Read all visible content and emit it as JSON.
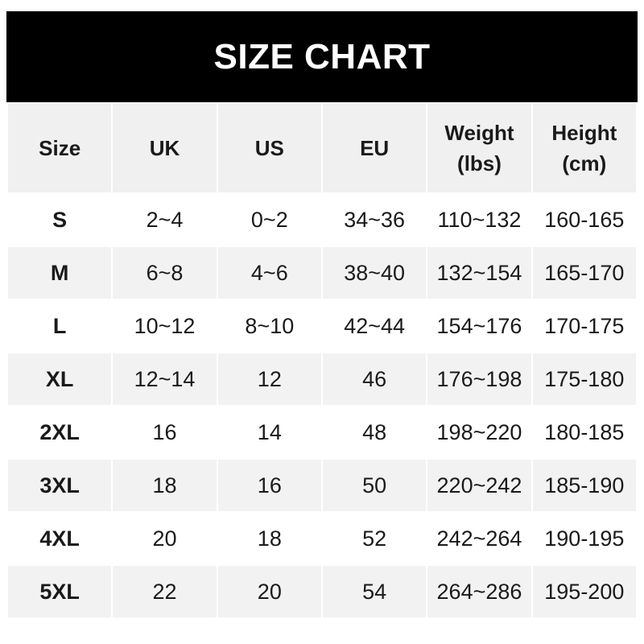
{
  "title": "SIZE CHART",
  "headers": [
    "Size",
    "UK",
    "US",
    "EU",
    "Weight\n(lbs)",
    "Height\n(cm)"
  ],
  "header_lines": [
    [
      "Size"
    ],
    [
      "UK"
    ],
    [
      "US"
    ],
    [
      "EU"
    ],
    [
      "Weight",
      "(lbs)"
    ],
    [
      "Height",
      "(cm)"
    ]
  ],
  "rows": [
    [
      "S",
      "2~4",
      "0~2",
      "34~36",
      "110~132",
      "160-165"
    ],
    [
      "M",
      "6~8",
      "4~6",
      "38~40",
      "132~154",
      "165-170"
    ],
    [
      "L",
      "10~12",
      "8~10",
      "42~44",
      "154~176",
      "170-175"
    ],
    [
      "XL",
      "12~14",
      "12",
      "46",
      "176~198",
      "175-180"
    ],
    [
      "2XL",
      "16",
      "14",
      "48",
      "198~220",
      "180-185"
    ],
    [
      "3XL",
      "18",
      "16",
      "50",
      "220~242",
      "185-190"
    ],
    [
      "4XL",
      "20",
      "18",
      "52",
      "242~264",
      "190-195"
    ],
    [
      "5XL",
      "22",
      "20",
      "54",
      "264~286",
      "195-200"
    ]
  ],
  "colors": {
    "banner": "#000000",
    "header_bg": "#f0f0f0",
    "stripe": "#f2f2f2"
  }
}
